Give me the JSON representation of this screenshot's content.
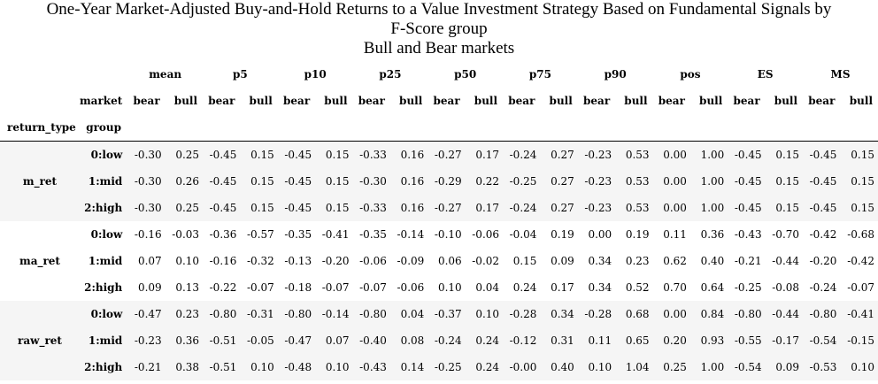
{
  "title_lines": [
    "One-Year Market-Adjusted Buy-and-Hold Returns to a Value Investment Strategy Based on Fundamental Signals by",
    "F-Score group",
    "Bull and Bear markets"
  ],
  "header": {
    "stats": [
      "mean",
      "p5",
      "p10",
      "p25",
      "p50",
      "p75",
      "p90",
      "pos",
      "ES",
      "MS"
    ],
    "market_label": "market",
    "group_label": "group",
    "return_type_label": "return_type",
    "columns": [
      "bear",
      "bull",
      "bear",
      "bull",
      "bear",
      "bull",
      "bear",
      "bull",
      "bear",
      "bull",
      "bear",
      "bull",
      "bear",
      "bull",
      "bear",
      "bull",
      "bear",
      "bull",
      "bear",
      "bull"
    ]
  },
  "row_groups": [
    {
      "return_type": "m_ret",
      "rows": [
        {
          "group": "0:low",
          "values": [
            "-0.30",
            "0.25",
            "-0.45",
            "0.15",
            "-0.45",
            "0.15",
            "-0.33",
            "0.16",
            "-0.27",
            "0.17",
            "-0.24",
            "0.27",
            "-0.23",
            "0.53",
            "0.00",
            "1.00",
            "-0.45",
            "0.15",
            "-0.45",
            "0.15"
          ]
        },
        {
          "group": "1:mid",
          "values": [
            "-0.30",
            "0.26",
            "-0.45",
            "0.15",
            "-0.45",
            "0.15",
            "-0.30",
            "0.16",
            "-0.29",
            "0.22",
            "-0.25",
            "0.27",
            "-0.23",
            "0.53",
            "0.00",
            "1.00",
            "-0.45",
            "0.15",
            "-0.45",
            "0.15"
          ]
        },
        {
          "group": "2:high",
          "values": [
            "-0.30",
            "0.25",
            "-0.45",
            "0.15",
            "-0.45",
            "0.15",
            "-0.33",
            "0.16",
            "-0.27",
            "0.17",
            "-0.24",
            "0.27",
            "-0.23",
            "0.53",
            "0.00",
            "1.00",
            "-0.45",
            "0.15",
            "-0.45",
            "0.15"
          ]
        }
      ]
    },
    {
      "return_type": "ma_ret",
      "rows": [
        {
          "group": "0:low",
          "values": [
            "-0.16",
            "-0.03",
            "-0.36",
            "-0.57",
            "-0.35",
            "-0.41",
            "-0.35",
            "-0.14",
            "-0.10",
            "-0.06",
            "-0.04",
            "0.19",
            "0.00",
            "0.19",
            "0.11",
            "0.36",
            "-0.43",
            "-0.70",
            "-0.42",
            "-0.68"
          ]
        },
        {
          "group": "1:mid",
          "values": [
            "0.07",
            "0.10",
            "-0.16",
            "-0.32",
            "-0.13",
            "-0.20",
            "-0.06",
            "-0.09",
            "0.06",
            "-0.02",
            "0.15",
            "0.09",
            "0.34",
            "0.23",
            "0.62",
            "0.40",
            "-0.21",
            "-0.44",
            "-0.20",
            "-0.42"
          ]
        },
        {
          "group": "2:high",
          "values": [
            "0.09",
            "0.13",
            "-0.22",
            "-0.07",
            "-0.18",
            "-0.07",
            "-0.07",
            "-0.06",
            "0.10",
            "0.04",
            "0.24",
            "0.17",
            "0.34",
            "0.52",
            "0.70",
            "0.64",
            "-0.25",
            "-0.08",
            "-0.24",
            "-0.07"
          ]
        }
      ]
    },
    {
      "return_type": "raw_ret",
      "rows": [
        {
          "group": "0:low",
          "values": [
            "-0.47",
            "0.23",
            "-0.80",
            "-0.31",
            "-0.80",
            "-0.14",
            "-0.80",
            "0.04",
            "-0.37",
            "0.10",
            "-0.28",
            "0.34",
            "-0.28",
            "0.68",
            "0.00",
            "0.84",
            "-0.80",
            "-0.44",
            "-0.80",
            "-0.41"
          ]
        },
        {
          "group": "1:mid",
          "values": [
            "-0.23",
            "0.36",
            "-0.51",
            "-0.05",
            "-0.47",
            "0.07",
            "-0.40",
            "0.08",
            "-0.24",
            "0.24",
            "-0.12",
            "0.31",
            "0.11",
            "0.65",
            "0.20",
            "0.93",
            "-0.55",
            "-0.17",
            "-0.54",
            "-0.15"
          ]
        },
        {
          "group": "2:high",
          "values": [
            "-0.21",
            "0.38",
            "-0.51",
            "0.10",
            "-0.48",
            "0.10",
            "-0.43",
            "0.14",
            "-0.25",
            "0.24",
            "-0.00",
            "0.40",
            "0.10",
            "1.04",
            "0.25",
            "1.00",
            "-0.54",
            "0.09",
            "-0.53",
            "0.10"
          ]
        }
      ]
    }
  ]
}
